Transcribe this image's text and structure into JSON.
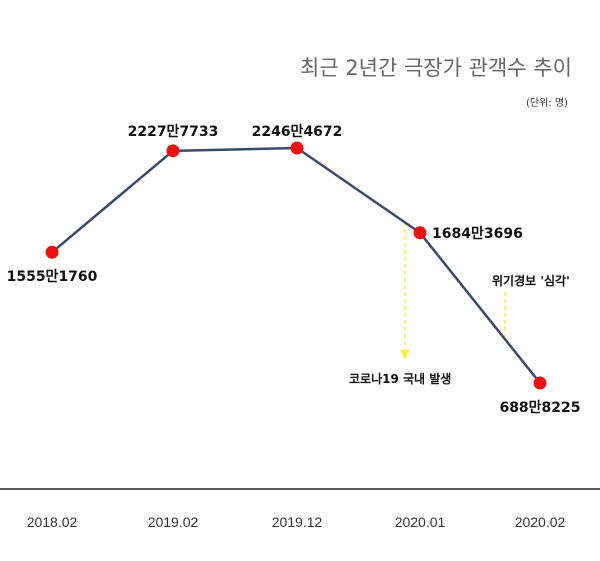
{
  "chart_data": {
    "type": "line",
    "title": "최근 2년간 극장가 관객수 추이",
    "unit_note": "(단위: 명)",
    "categories": [
      "2018.02",
      "2019.02",
      "2019.12",
      "2020.01",
      "2020.02"
    ],
    "values": [
      15551760,
      22277733,
      22464672,
      16843696,
      6888225
    ],
    "data_labels": [
      "1555만1760",
      "2227만7733",
      "2246만4672",
      "1684만3696",
      "688만8225"
    ],
    "annotations": [
      {
        "text": "코로나19 국내 발생",
        "between": [
          "2019.12",
          "2020.01"
        ]
      },
      {
        "text": "위기경보 '심각'",
        "between": [
          "2020.01",
          "2020.02"
        ]
      }
    ],
    "colors": {
      "line": "#3b4a6b",
      "marker": "#ee1111",
      "annotation_arrow": "#f2f23a",
      "axis": "#222222"
    },
    "grid": false,
    "legend": "none"
  }
}
